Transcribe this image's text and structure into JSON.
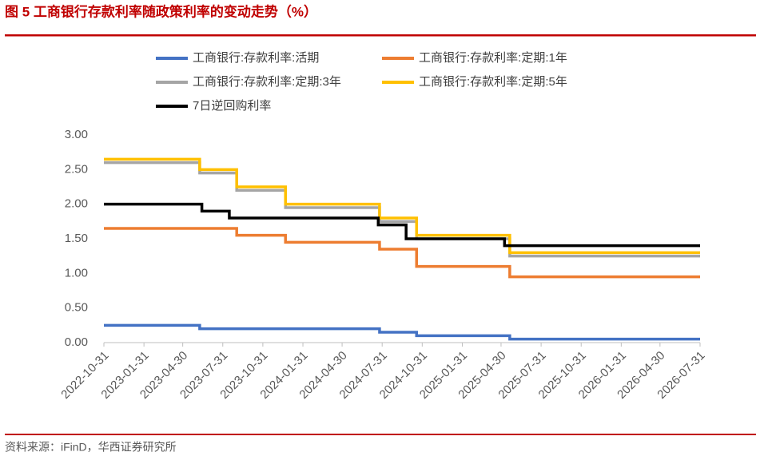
{
  "chart_data": {
    "type": "line",
    "title": "图 5  工商银行存款利率随政策利率的变动走势（%）",
    "xlim": [
      "2022-10-31",
      "2026-07-31"
    ],
    "xticks": [
      "2022-10-31",
      "2023-01-31",
      "2023-04-30",
      "2023-07-31",
      "2023-10-31",
      "2024-01-31",
      "2024-04-30",
      "2024-07-31",
      "2024-10-31",
      "2025-01-31",
      "2025-04-30",
      "2025-07-31",
      "2025-10-31",
      "2026-01-31",
      "2026-04-30",
      "2026-07-31"
    ],
    "ylim": [
      0,
      3
    ],
    "yticks": [
      {
        "value": 0,
        "label": "0.00"
      },
      {
        "value": 0.5,
        "label": "0.50"
      },
      {
        "value": 1,
        "label": "1.00"
      },
      {
        "value": 1.5,
        "label": "1.50"
      },
      {
        "value": 2,
        "label": "2.00"
      },
      {
        "value": 2.5,
        "label": "2.50"
      },
      {
        "value": 3,
        "label": "3.00"
      }
    ],
    "step": true,
    "series": [
      {
        "name": "工商银行:存款利率:活期",
        "color": "#4472c4",
        "x": [
          "2022-10-31",
          "2023-06-08",
          "2024-07-25",
          "2024-10-18",
          "2025-05-20",
          "2026-07-31"
        ],
        "values": [
          0.25,
          0.2,
          0.15,
          0.1,
          0.05,
          0.05
        ]
      },
      {
        "name": "工商银行:存款利率:定期:1年",
        "color": "#ed7d31",
        "x": [
          "2022-10-31",
          "2023-09-01",
          "2023-12-22",
          "2024-07-25",
          "2024-10-18",
          "2025-05-20",
          "2026-07-31"
        ],
        "values": [
          1.65,
          1.55,
          1.45,
          1.35,
          1.1,
          0.95,
          0.95
        ]
      },
      {
        "name": "工商银行:存款利率:定期:3年",
        "color": "#a5a5a5",
        "x": [
          "2022-10-31",
          "2023-06-08",
          "2023-09-01",
          "2023-12-22",
          "2024-07-25",
          "2024-10-18",
          "2025-05-20",
          "2026-07-31"
        ],
        "values": [
          2.6,
          2.45,
          2.2,
          1.95,
          1.75,
          1.5,
          1.25,
          1.25
        ]
      },
      {
        "name": "工商银行:存款利率:定期:5年",
        "color": "#ffc000",
        "x": [
          "2022-10-31",
          "2023-06-08",
          "2023-09-01",
          "2023-12-22",
          "2024-07-25",
          "2024-10-18",
          "2025-05-20",
          "2026-07-31"
        ],
        "values": [
          2.65,
          2.5,
          2.25,
          2.0,
          1.8,
          1.55,
          1.3,
          1.3
        ]
      },
      {
        "name": "7日逆回购利率",
        "color": "#000000",
        "x": [
          "2022-10-31",
          "2023-06-13",
          "2023-08-15",
          "2024-07-22",
          "2024-09-24",
          "2025-05-08",
          "2026-07-31"
        ],
        "values": [
          2.0,
          1.9,
          1.8,
          1.7,
          1.5,
          1.4,
          1.4
        ]
      }
    ]
  },
  "source": "资料来源：iFinD，华西证券研究所"
}
